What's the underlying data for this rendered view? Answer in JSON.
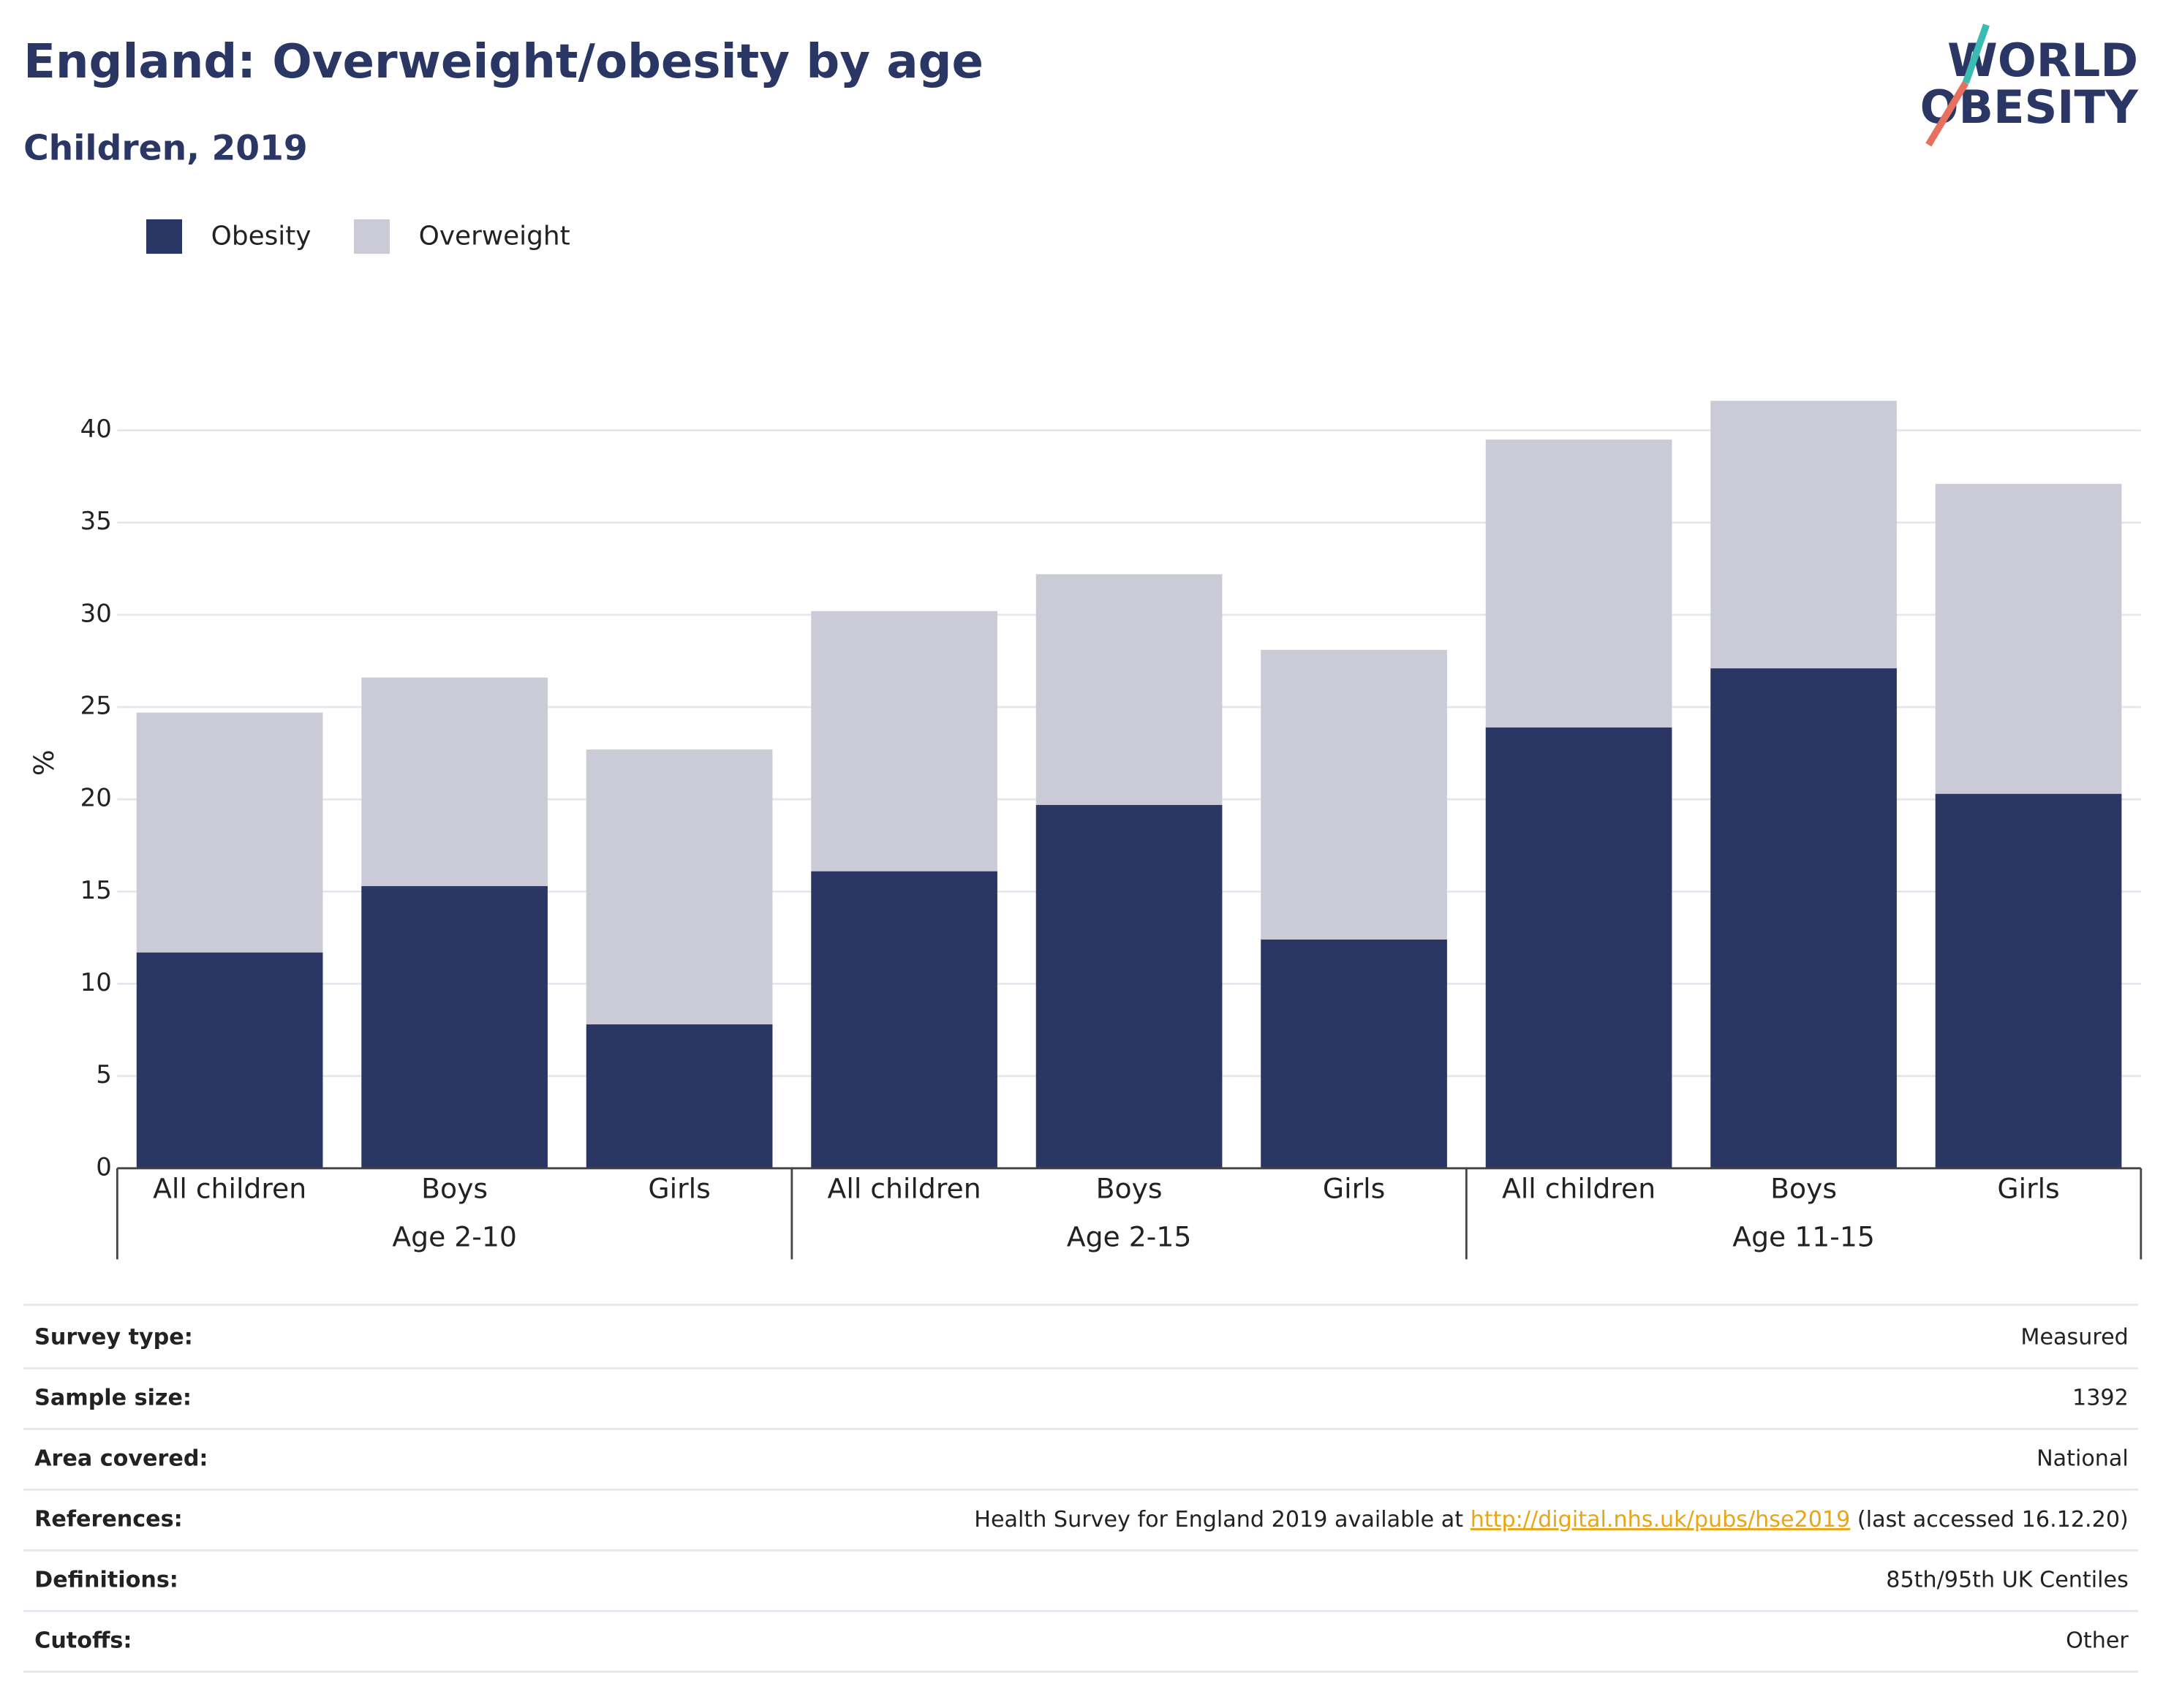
{
  "chart_data": {
    "type": "bar",
    "title": "England: Overweight/obesity by age",
    "subtitle": "Children, 2019",
    "y_label": "%",
    "categories": [
      "All children",
      "Boys",
      "Girls",
      "All children",
      "Boys",
      "Girls",
      "All children",
      "Boys",
      "Girls"
    ],
    "category_groups": [
      "Age 2-10",
      "Age 2-15",
      "Age 11-15"
    ],
    "stacked": true,
    "series": [
      {
        "name": "Obesity",
        "color": "#2a3663",
        "values": [
          11.7,
          15.3,
          7.8,
          16.1,
          19.7,
          12.4,
          23.9,
          27.1,
          20.3
        ]
      },
      {
        "name": "Overweight",
        "color": "#cacbd7",
        "values": [
          13.0,
          11.3,
          14.9,
          14.1,
          12.5,
          15.7,
          15.6,
          14.5,
          16.8
        ]
      }
    ],
    "ylim": [
      0,
      40
    ],
    "yticks": [
      0,
      5,
      10,
      15,
      20,
      25,
      30,
      35,
      40
    ],
    "grid": true,
    "legend": "top-left"
  },
  "logo": {
    "lines": [
      "WORLD",
      "OBESITY"
    ]
  },
  "info_table": {
    "rows": [
      {
        "label": "Survey type:",
        "value": "Measured"
      },
      {
        "label": "Sample size:",
        "value": "1392"
      },
      {
        "label": "Area covered:",
        "value": "National"
      },
      {
        "label": "References:",
        "value": [
          "Health Survey for England 2019 available at ",
          "http://digital.nhs.uk/pubs/hse2019",
          " (last accessed 16.12.20)"
        ]
      },
      {
        "label": "Definitions:",
        "value": "85th/95th UK Centiles"
      },
      {
        "label": "Cutoffs:",
        "value": "Other"
      }
    ]
  }
}
